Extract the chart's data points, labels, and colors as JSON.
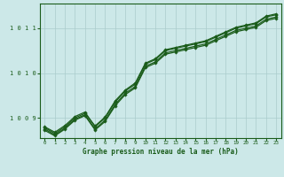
{
  "xlabel": "Graphe pression niveau de la mer (hPa)",
  "bg_color": "#cce8e8",
  "grid_color": "#aacccc",
  "line_color": "#1a5c1a",
  "marker_color": "#1a5c1a",
  "xlim": [
    -0.5,
    23.5
  ],
  "ylim": [
    1008.55,
    1011.55
  ],
  "yticks": [
    1009,
    1010,
    1011
  ],
  "xticks": [
    0,
    1,
    2,
    3,
    4,
    5,
    6,
    7,
    8,
    9,
    10,
    11,
    12,
    13,
    14,
    15,
    16,
    17,
    18,
    19,
    20,
    21,
    22,
    23
  ],
  "series": [
    [
      1008.78,
      1008.65,
      1008.8,
      1009.0,
      1009.1,
      1008.82,
      1009.02,
      1009.38,
      1009.62,
      1009.78,
      1010.22,
      1010.32,
      1010.52,
      1010.57,
      1010.62,
      1010.67,
      1010.72,
      1010.82,
      1010.92,
      1011.02,
      1011.07,
      1011.12,
      1011.27,
      1011.32
    ],
    [
      1008.75,
      1008.62,
      1008.77,
      1008.97,
      1009.07,
      1008.75,
      1008.95,
      1009.3,
      1009.55,
      1009.7,
      1010.15,
      1010.25,
      1010.45,
      1010.5,
      1010.55,
      1010.6,
      1010.65,
      1010.75,
      1010.85,
      1010.95,
      1011.0,
      1011.05,
      1011.2,
      1011.25
    ],
    [
      1008.8,
      1008.68,
      1008.83,
      1009.03,
      1009.13,
      1008.8,
      1009.0,
      1009.35,
      1009.6,
      1009.75,
      1010.2,
      1010.3,
      1010.5,
      1010.55,
      1010.6,
      1010.65,
      1010.7,
      1010.8,
      1010.9,
      1011.0,
      1011.05,
      1011.1,
      1011.25,
      1011.3
    ],
    [
      1008.72,
      1008.6,
      1008.75,
      1008.95,
      1009.05,
      1008.73,
      1008.92,
      1009.27,
      1009.52,
      1009.67,
      1010.12,
      1010.22,
      1010.42,
      1010.47,
      1010.52,
      1010.57,
      1010.62,
      1010.72,
      1010.82,
      1010.92,
      1010.97,
      1011.02,
      1011.17,
      1011.22
    ]
  ]
}
